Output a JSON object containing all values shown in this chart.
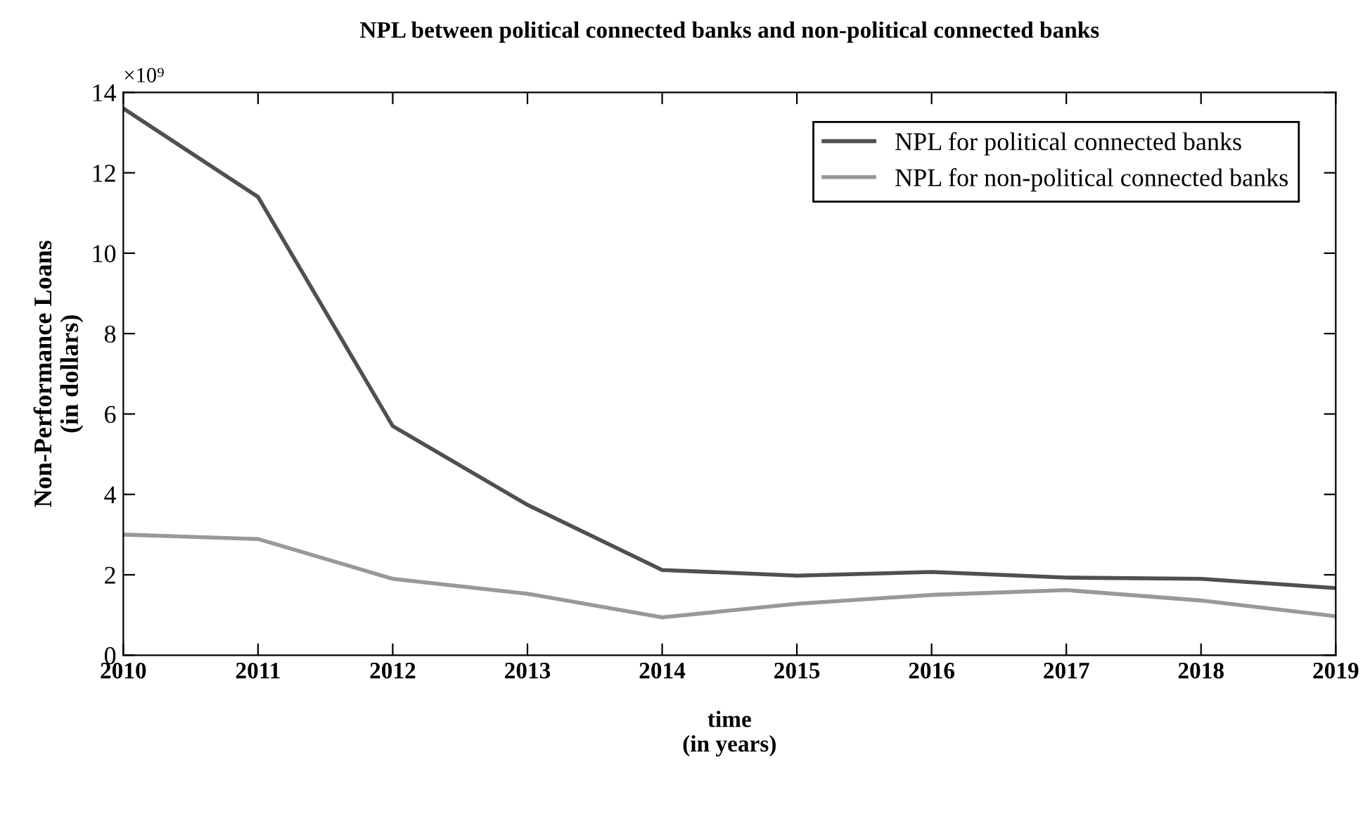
{
  "chart_data": {
    "type": "line",
    "title": "NPL between political connected banks and non-political connected banks",
    "xlabel": "time\n(in years)",
    "ylabel": "Non-Performance Loans\n(in dollars)",
    "annotations": [
      "×10⁹"
    ],
    "x": [
      2010,
      2011,
      2012,
      2013,
      2014,
      2015,
      2016,
      2017,
      2018,
      2019
    ],
    "series": [
      {
        "name": "NPL for political connected banks",
        "color": "#505050",
        "values": [
          13.6,
          11.4,
          5.7,
          3.74,
          2.12,
          1.98,
          2.07,
          1.93,
          1.9,
          1.67
        ]
      },
      {
        "name": "NPL for non-political connected banks",
        "color": "#999999",
        "values": [
          3.0,
          2.89,
          1.9,
          1.53,
          0.94,
          1.28,
          1.5,
          1.62,
          1.36,
          0.97
        ]
      }
    ],
    "xlim": [
      2010,
      2019
    ],
    "xticks": [
      2010,
      2011,
      2012,
      2013,
      2014,
      2015,
      2016,
      2017,
      2018,
      2019
    ],
    "ylim": [
      0,
      14
    ],
    "yticks": [
      0,
      2,
      4,
      6,
      8,
      10,
      12,
      14
    ],
    "grid": false,
    "legend": "top right",
    "marker": "none",
    "line_style": "solid"
  }
}
